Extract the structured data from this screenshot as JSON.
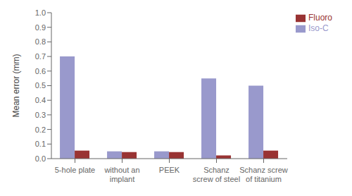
{
  "chart_data": {
    "type": "bar",
    "categories": [
      "5-hole plate",
      "without an\nimplant",
      "PEEK",
      "Schanz\nscrew of steel",
      "Schanz screw\nof titanium"
    ],
    "series": [
      {
        "name": "Iso-C",
        "color": "#9999cc",
        "values": [
          0.7,
          0.05,
          0.05,
          0.55,
          0.5
        ]
      },
      {
        "name": "Fluoro",
        "color": "#993333",
        "values": [
          0.055,
          0.045,
          0.045,
          0.022,
          0.055
        ]
      }
    ],
    "ylabel": "Mean error (mm)",
    "ylim": [
      0,
      1.0
    ],
    "yticks": [
      {
        "value": 0,
        "label": "0.0"
      },
      0.1,
      0.2,
      0.3,
      0.4,
      0.5,
      0.6,
      0.7,
      0.8,
      0.9,
      {
        "value": 1.0,
        "label": "1.0"
      }
    ],
    "legend": "right",
    "grid": false
  }
}
